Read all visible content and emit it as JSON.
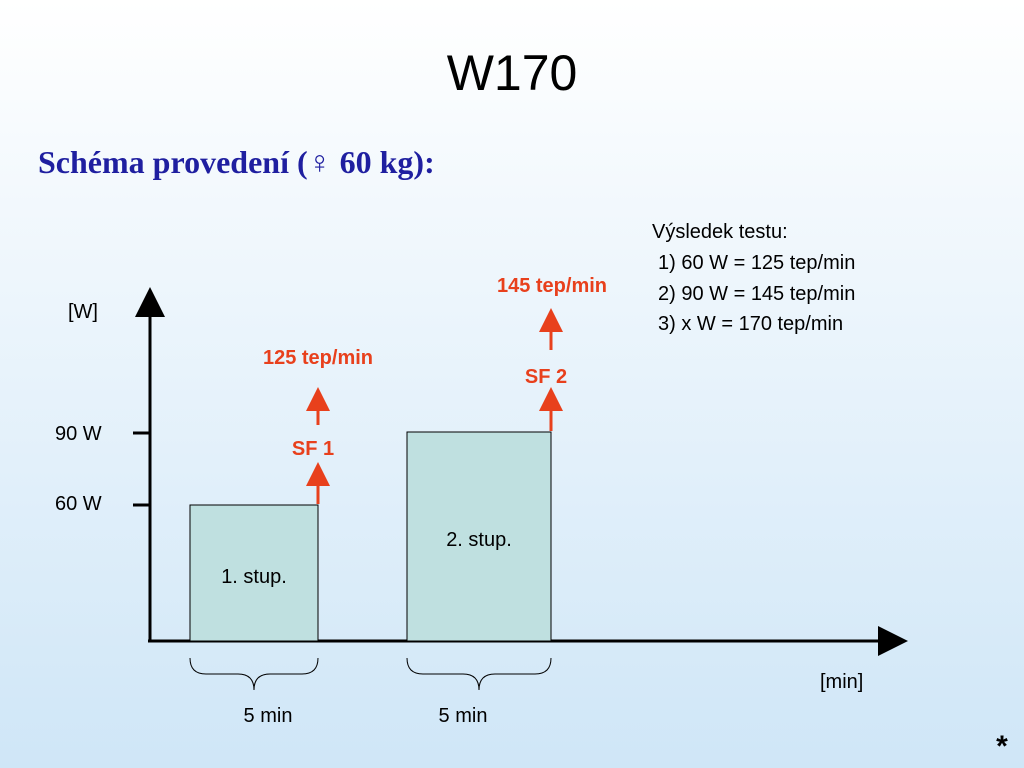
{
  "header": {
    "title": "W170",
    "subtitle": "Schéma provedení (♀ 60 kg):"
  },
  "results": {
    "heading": "Výsledek testu:",
    "lines": [
      "1) 60 W = 125 tep/min",
      "2) 90 W = 145 tep/min",
      "3)  x  W = 170 tep/min"
    ]
  },
  "diagram": {
    "y_axis_label": "[W]",
    "x_axis_label": "[min]",
    "y_ticks": [
      "90 W",
      "60 W"
    ],
    "stages": [
      {
        "label": "1. stup.",
        "duration": "5 min",
        "heart_rate": "125 tep/min",
        "marker": "SF 1"
      },
      {
        "label": "2. stup.",
        "duration": "5 min",
        "heart_rate": "145 tep/min",
        "marker": "SF 2"
      }
    ]
  },
  "footer": {
    "symbol": "*"
  }
}
